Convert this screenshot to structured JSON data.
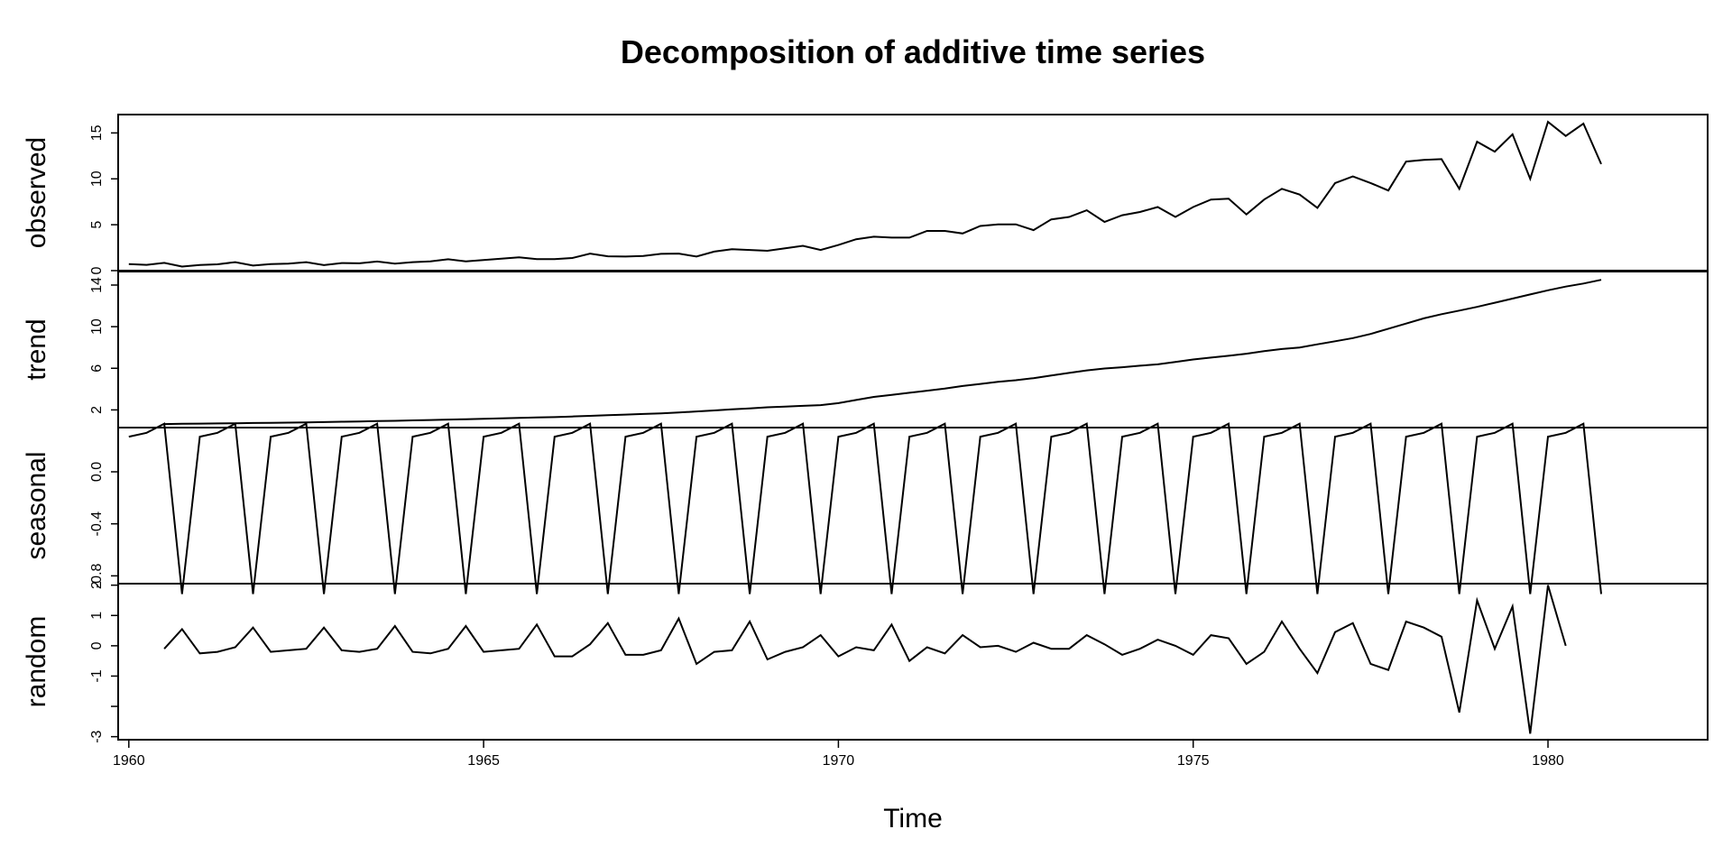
{
  "chart_data": {
    "type": "line",
    "title": "Decomposition of additive time series",
    "xlabel": "Time",
    "x_ticks": [
      1960,
      1965,
      1970,
      1975,
      1980
    ],
    "x_range": [
      1959.85,
      1982.25
    ],
    "x_start": 1960.0,
    "frequency": 4,
    "panels": [
      {
        "name": "observed",
        "ylim": [
          0,
          17
        ],
        "y_ticks": [
          0,
          5,
          10,
          15
        ],
        "y_tick_labels": [
          "0",
          "5",
          "10",
          "15"
        ],
        "values": [
          0.71,
          0.63,
          0.85,
          0.44,
          0.61,
          0.69,
          0.92,
          0.55,
          0.72,
          0.77,
          0.92,
          0.6,
          0.83,
          0.8,
          0.99,
          0.77,
          0.92,
          1.0,
          1.24,
          1.0,
          1.16,
          1.3,
          1.45,
          1.25,
          1.26,
          1.38,
          1.86,
          1.56,
          1.53,
          1.59,
          1.83,
          1.86,
          1.53,
          2.07,
          2.34,
          2.25,
          2.16,
          2.43,
          2.7,
          2.25,
          2.79,
          3.42,
          3.69,
          3.6,
          3.6,
          4.32,
          4.32,
          4.05,
          4.86,
          5.04,
          5.04,
          4.41,
          5.58,
          5.85,
          6.57,
          5.31,
          6.03,
          6.39,
          6.93,
          5.85,
          6.93,
          7.74,
          7.83,
          6.12,
          7.74,
          8.91,
          8.28,
          6.84,
          9.54,
          10.26,
          9.54,
          8.73,
          11.88,
          12.06,
          12.15,
          8.91,
          14.04,
          12.96,
          14.85,
          9.99,
          16.2,
          14.67,
          16.02,
          11.61
        ]
      },
      {
        "name": "trend",
        "ylim": [
          0.3,
          15.3
        ],
        "y_ticks": [
          2,
          6,
          10,
          14
        ],
        "y_tick_labels": [
          "2",
          "6",
          "10",
          "14"
        ],
        "values": [
          null,
          null,
          0.64,
          0.66,
          0.68,
          0.7,
          0.72,
          0.74,
          0.76,
          0.78,
          0.8,
          0.83,
          0.86,
          0.89,
          0.92,
          0.95,
          0.99,
          1.03,
          1.07,
          1.11,
          1.15,
          1.19,
          1.23,
          1.27,
          1.31,
          1.37,
          1.43,
          1.49,
          1.55,
          1.61,
          1.67,
          1.75,
          1.85,
          1.95,
          2.05,
          2.15,
          2.25,
          2.32,
          2.39,
          2.46,
          2.65,
          2.95,
          3.25,
          3.45,
          3.65,
          3.85,
          4.05,
          4.3,
          4.5,
          4.7,
          4.85,
          5.05,
          5.3,
          5.55,
          5.8,
          5.98,
          6.1,
          6.25,
          6.38,
          6.6,
          6.85,
          7.03,
          7.2,
          7.4,
          7.65,
          7.85,
          8.0,
          8.3,
          8.6,
          8.9,
          9.3,
          9.8,
          10.3,
          10.8,
          11.2,
          11.55,
          11.9,
          12.3,
          12.7,
          13.1,
          13.5,
          13.85,
          14.15,
          14.5,
          null,
          null
        ]
      },
      {
        "name": "seasonal",
        "ylim": [
          -0.86,
          0.34
        ],
        "y_ticks": [
          -0.8,
          -0.4,
          0.0
        ],
        "y_tick_labels": [
          "-0.8",
          "-0.4",
          "0.0"
        ],
        "pattern": [
          0.27,
          0.3,
          0.37,
          -0.94
        ],
        "values": []
      },
      {
        "name": "random",
        "ylim": [
          -3.1,
          2.05
        ],
        "y_ticks": [
          -3,
          -2,
          -1,
          0,
          1,
          2
        ],
        "y_tick_labels": [
          "-3",
          "",
          "-1",
          "0",
          "1",
          "2"
        ],
        "values": [
          null,
          null,
          -0.1,
          0.55,
          -0.25,
          -0.2,
          -0.05,
          0.6,
          -0.2,
          -0.15,
          -0.1,
          0.6,
          -0.15,
          -0.2,
          -0.1,
          0.65,
          -0.2,
          -0.25,
          -0.1,
          0.65,
          -0.2,
          -0.15,
          -0.1,
          0.7,
          -0.35,
          -0.35,
          0.05,
          0.75,
          -0.3,
          -0.3,
          -0.15,
          0.9,
          -0.6,
          -0.2,
          -0.15,
          0.8,
          -0.45,
          -0.2,
          -0.05,
          0.35,
          -0.35,
          -0.05,
          -0.15,
          0.7,
          -0.5,
          -0.05,
          -0.25,
          0.35,
          -0.05,
          0.0,
          -0.2,
          0.1,
          -0.1,
          -0.1,
          0.35,
          0.05,
          -0.3,
          -0.1,
          0.2,
          0.0,
          -0.3,
          0.35,
          0.25,
          -0.6,
          -0.2,
          0.8,
          -0.1,
          -0.9,
          0.45,
          0.75,
          -0.6,
          -0.8,
          0.8,
          0.6,
          0.3,
          -2.2,
          1.5,
          -0.1,
          1.3,
          -2.9,
          2.0,
          0.0,
          null,
          null
        ]
      }
    ]
  }
}
